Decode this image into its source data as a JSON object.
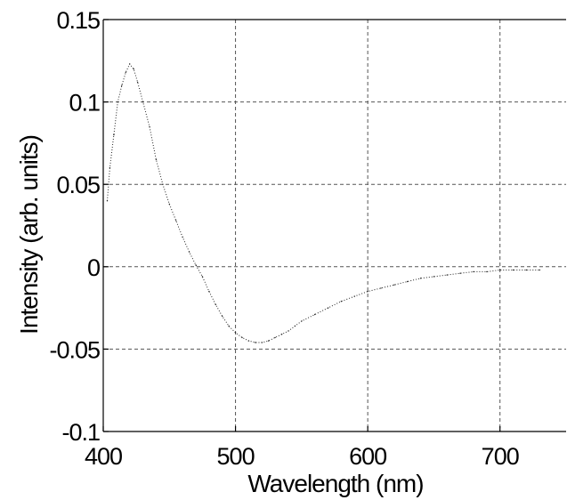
{
  "chart_data": {
    "type": "line",
    "title": "",
    "xlabel": "Wavelength (nm)",
    "ylabel": "Intensity (arb. units)",
    "xlim": [
      400,
      750
    ],
    "ylim": [
      -0.1,
      0.15
    ],
    "xticks": [
      400,
      500,
      600,
      700
    ],
    "xtick_labels": [
      "400",
      "500",
      "600",
      "700"
    ],
    "yticks": [
      -0.1,
      -0.05,
      0,
      0.05,
      0.1,
      0.15
    ],
    "ytick_labels": [
      "-0.1",
      "-0.05",
      "0",
      "0.05",
      "0.1",
      "0.15"
    ],
    "grid": true,
    "series": [
      {
        "color": "#222222",
        "x": [
          403,
          405,
          408,
          411,
          414,
          417,
          420,
          423,
          426,
          430,
          435,
          440,
          445,
          450,
          455,
          460,
          465,
          470,
          475,
          480,
          485,
          490,
          495,
          500,
          505,
          510,
          515,
          520,
          525,
          530,
          535,
          540,
          545,
          550,
          560,
          570,
          580,
          590,
          600,
          610,
          620,
          630,
          640,
          650,
          660,
          670,
          680,
          690,
          700,
          710,
          720,
          730
        ],
        "y": [
          0.04,
          0.06,
          0.08,
          0.1,
          0.11,
          0.118,
          0.123,
          0.12,
          0.112,
          0.1,
          0.085,
          0.065,
          0.05,
          0.038,
          0.028,
          0.018,
          0.009,
          0.001,
          -0.006,
          -0.015,
          -0.023,
          -0.03,
          -0.036,
          -0.04,
          -0.043,
          -0.045,
          -0.046,
          -0.046,
          -0.045,
          -0.043,
          -0.041,
          -0.039,
          -0.036,
          -0.033,
          -0.029,
          -0.025,
          -0.021,
          -0.018,
          -0.015,
          -0.013,
          -0.011,
          -0.009,
          -0.007,
          -0.006,
          -0.005,
          -0.004,
          -0.003,
          -0.003,
          -0.002,
          -0.002,
          -0.002,
          -0.002
        ]
      }
    ]
  }
}
